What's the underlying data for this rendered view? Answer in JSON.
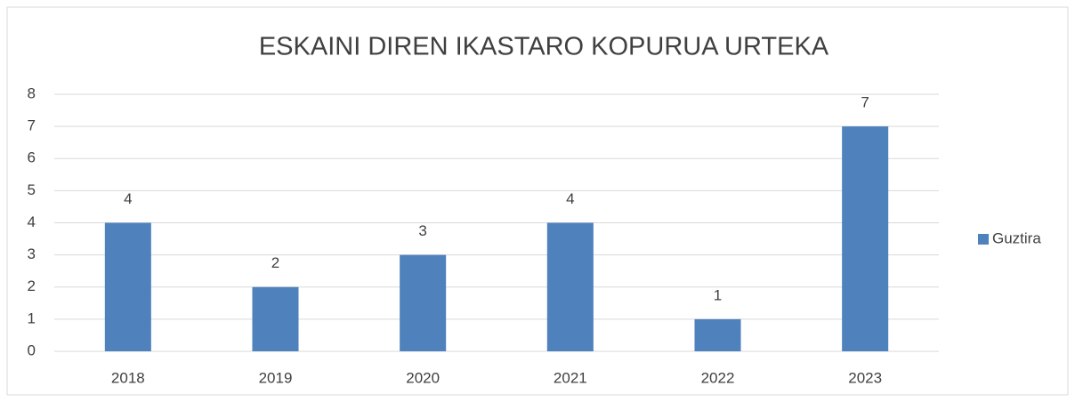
{
  "chart_data": {
    "type": "bar",
    "title": "ESKAINI DIREN IKASTARO KOPURUA URTEKA",
    "categories": [
      "2018",
      "2019",
      "2020",
      "2021",
      "2022",
      "2023"
    ],
    "series": [
      {
        "name": "Guztira",
        "color": "#4f81bd",
        "values": [
          4,
          2,
          3,
          4,
          1,
          7
        ]
      }
    ],
    "ylim": [
      0,
      8
    ],
    "yticks": [
      0,
      1,
      2,
      3,
      4,
      5,
      6,
      7,
      8
    ],
    "grid": true,
    "legend": "right"
  }
}
